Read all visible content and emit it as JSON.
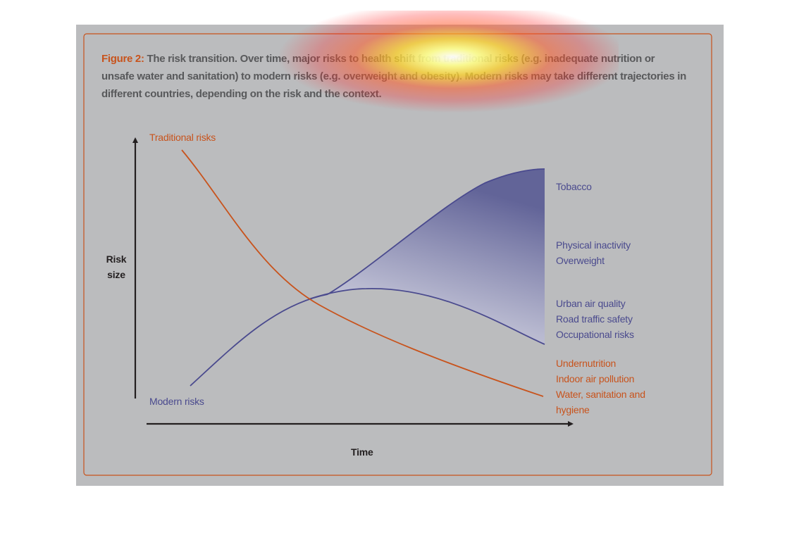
{
  "caption": {
    "figure_label": "Figure 2:",
    "text": " The risk transition. Over time, major risks to health shift from traditional risks (e.g. inadequate nutrition or unsafe water and sanitation) to modern risks (e.g. overweight and obesity). Modern risks may take different trajectories in different countries, depending on the risk and the context."
  },
  "axes": {
    "y_label_line1": "Risk",
    "y_label_line2": "size",
    "x_label": "Time"
  },
  "curves": {
    "traditional_label": "Traditional risks",
    "modern_label": "Modern risks"
  },
  "modern_outcomes": {
    "top": [
      "Tobacco"
    ],
    "middle": [
      "Physical inactivity",
      "Overweight"
    ],
    "bottom": [
      "Urban air quality",
      "Road traffic safety",
      "Occupational risks"
    ]
  },
  "traditional_outcomes": [
    "Undernutrition",
    "Indoor air pollution",
    "Water, sanitation and",
    "hygiene"
  ],
  "colors": {
    "panel_background": "#bbbcbe",
    "traditional": "#c8531c",
    "modern": "#4a4a8e",
    "axis": "#231f20",
    "caption_text": "#58595b"
  }
}
